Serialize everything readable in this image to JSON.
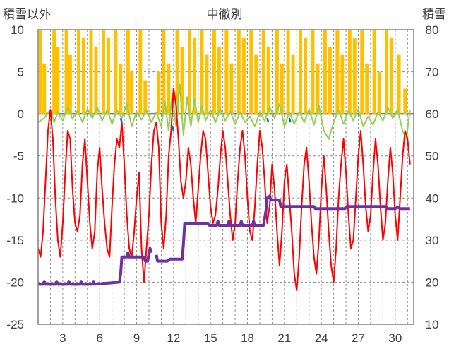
{
  "chart_data": {
    "type": "line",
    "title": "中徹別",
    "ylabel_left": "積雪以外",
    "ylabel_right": "積雪",
    "left_axis": {
      "min": -25,
      "max": 10,
      "ticks": [
        "10",
        "5",
        "0",
        "-5",
        "-10",
        "-15",
        "-20",
        "-25"
      ]
    },
    "right_axis": {
      "min": 10,
      "max": 80,
      "ticks": [
        "80",
        "70",
        "60",
        "50",
        "40",
        "30",
        "20",
        "10"
      ]
    },
    "x_axis": {
      "min": 1,
      "max": 31.5,
      "tick_labels": [
        "3",
        "6",
        "9",
        "12",
        "15",
        "18",
        "21",
        "24",
        "27",
        "30"
      ],
      "tick_values": [
        3,
        6,
        9,
        12,
        15,
        18,
        21,
        24,
        27,
        30
      ]
    },
    "grid": "dashed",
    "colors": {
      "precipitation": "#ffc000",
      "temperature": "#ff0000",
      "wind": "#92d050",
      "snow_depth": "#7030a0",
      "accent": "#0070c0",
      "zero_line": "#808080",
      "frame": "#808080"
    },
    "precip_bars": [
      [
        1.2,
        10
      ],
      [
        1.5,
        6
      ],
      [
        2.3,
        10
      ],
      [
        2.6,
        8
      ],
      [
        3.3,
        10
      ],
      [
        3.6,
        7
      ],
      [
        4.3,
        10
      ],
      [
        4.7,
        9
      ],
      [
        5.3,
        10
      ],
      [
        5.7,
        8
      ],
      [
        6.3,
        10
      ],
      [
        6.7,
        9
      ],
      [
        7.3,
        10
      ],
      [
        7.7,
        6
      ],
      [
        8.3,
        10
      ],
      [
        8.6,
        5
      ],
      [
        9.3,
        10
      ],
      [
        9.7,
        4
      ],
      [
        10.8,
        5
      ],
      [
        11.2,
        10
      ],
      [
        11.6,
        6
      ],
      [
        12.3,
        10
      ],
      [
        12.7,
        8
      ],
      [
        13.3,
        10
      ],
      [
        13.7,
        9
      ],
      [
        14.3,
        10
      ],
      [
        14.7,
        7
      ],
      [
        15.3,
        10
      ],
      [
        15.7,
        8
      ],
      [
        16.3,
        10
      ],
      [
        16.7,
        6
      ],
      [
        17.3,
        10
      ],
      [
        17.7,
        9
      ],
      [
        18.3,
        10
      ],
      [
        18.7,
        7
      ],
      [
        19.3,
        10
      ],
      [
        19.7,
        8
      ],
      [
        20.4,
        10
      ],
      [
        20.8,
        6
      ],
      [
        21.3,
        10
      ],
      [
        21.7,
        7
      ],
      [
        22.3,
        10
      ],
      [
        22.7,
        9
      ],
      [
        23.3,
        10
      ],
      [
        23.7,
        6
      ],
      [
        24.3,
        10
      ],
      [
        24.7,
        8
      ],
      [
        25.3,
        10
      ],
      [
        25.7,
        7
      ],
      [
        26.3,
        10
      ],
      [
        26.7,
        9
      ],
      [
        27.3,
        10
      ],
      [
        27.7,
        6
      ],
      [
        28.3,
        10
      ],
      [
        28.7,
        5
      ],
      [
        29.3,
        10
      ],
      [
        29.7,
        9
      ],
      [
        30.3,
        7
      ],
      [
        30.8,
        3
      ]
    ],
    "temperature": [
      [
        1.0,
        -16
      ],
      [
        1.2,
        -17
      ],
      [
        1.4,
        -14
      ],
      [
        1.6,
        -8
      ],
      [
        1.8,
        -2
      ],
      [
        2.0,
        0.5
      ],
      [
        2.2,
        -3
      ],
      [
        2.4,
        -10
      ],
      [
        2.6,
        -15
      ],
      [
        2.8,
        -17
      ],
      [
        3.0,
        -13
      ],
      [
        3.2,
        -7
      ],
      [
        3.4,
        -2
      ],
      [
        3.6,
        -3
      ],
      [
        3.8,
        -9
      ],
      [
        4.0,
        -13
      ],
      [
        4.2,
        -14
      ],
      [
        4.4,
        -12
      ],
      [
        4.6,
        -6
      ],
      [
        4.8,
        -3
      ],
      [
        5.0,
        -8
      ],
      [
        5.2,
        -13
      ],
      [
        5.4,
        -16
      ],
      [
        5.6,
        -14
      ],
      [
        5.8,
        -7
      ],
      [
        6.0,
        -4
      ],
      [
        6.2,
        -9
      ],
      [
        6.4,
        -13
      ],
      [
        6.6,
        -16
      ],
      [
        6.8,
        -17
      ],
      [
        7.0,
        -11
      ],
      [
        7.2,
        -6
      ],
      [
        7.4,
        -3
      ],
      [
        7.6,
        -4
      ],
      [
        7.8,
        -1
      ],
      [
        8.0,
        -6
      ],
      [
        8.2,
        -12
      ],
      [
        8.4,
        -16
      ],
      [
        8.6,
        -17
      ],
      [
        8.8,
        -14
      ],
      [
        9.0,
        -10
      ],
      [
        9.2,
        -7
      ],
      [
        9.4,
        -16
      ],
      [
        9.6,
        -20
      ],
      [
        9.8,
        -16
      ],
      [
        10.0,
        -12
      ],
      [
        10.2,
        -6
      ],
      [
        10.4,
        -2
      ],
      [
        10.6,
        -1
      ],
      [
        10.8,
        -4
      ],
      [
        11.0,
        -13
      ],
      [
        11.2,
        -16
      ],
      [
        11.4,
        -12
      ],
      [
        11.6,
        -5
      ],
      [
        11.8,
        -2
      ],
      [
        12.0,
        3
      ],
      [
        12.2,
        1
      ],
      [
        12.4,
        -3
      ],
      [
        12.6,
        -8
      ],
      [
        12.8,
        -10
      ],
      [
        13.0,
        -8
      ],
      [
        13.2,
        -4
      ],
      [
        13.4,
        -6
      ],
      [
        13.6,
        -10
      ],
      [
        13.8,
        -13
      ],
      [
        14.0,
        -9
      ],
      [
        14.2,
        -5
      ],
      [
        14.4,
        -2
      ],
      [
        14.6,
        -3
      ],
      [
        14.8,
        -7
      ],
      [
        15.0,
        -11
      ],
      [
        15.2,
        -13
      ],
      [
        15.4,
        -12
      ],
      [
        15.6,
        -9
      ],
      [
        15.8,
        -5
      ],
      [
        16.0,
        -2
      ],
      [
        16.2,
        -4
      ],
      [
        16.4,
        -8
      ],
      [
        16.6,
        -12
      ],
      [
        16.8,
        -15
      ],
      [
        17.0,
        -13
      ],
      [
        17.2,
        -8
      ],
      [
        17.4,
        -4
      ],
      [
        17.6,
        -2
      ],
      [
        17.8,
        -5
      ],
      [
        18.0,
        -10
      ],
      [
        18.2,
        -14
      ],
      [
        18.4,
        -15
      ],
      [
        18.6,
        -11
      ],
      [
        18.8,
        -6
      ],
      [
        19.0,
        -2
      ],
      [
        19.2,
        -4
      ],
      [
        19.4,
        -8
      ],
      [
        19.6,
        -13
      ],
      [
        19.8,
        -11
      ],
      [
        20.0,
        -6
      ],
      [
        20.2,
        -9
      ],
      [
        20.4,
        -14
      ],
      [
        20.6,
        -18
      ],
      [
        20.8,
        -14
      ],
      [
        21.0,
        -8
      ],
      [
        21.2,
        -6
      ],
      [
        21.4,
        -10
      ],
      [
        21.6,
        -14
      ],
      [
        21.8,
        -19
      ],
      [
        22.0,
        -21
      ],
      [
        22.2,
        -17
      ],
      [
        22.4,
        -11
      ],
      [
        22.6,
        -6
      ],
      [
        22.8,
        -4
      ],
      [
        23.0,
        -8
      ],
      [
        23.2,
        -13
      ],
      [
        23.4,
        -17
      ],
      [
        23.6,
        -19
      ],
      [
        23.8,
        -15
      ],
      [
        24.0,
        -9
      ],
      [
        24.2,
        -5
      ],
      [
        24.4,
        -9
      ],
      [
        24.6,
        -14
      ],
      [
        24.8,
        -18
      ],
      [
        25.0,
        -20
      ],
      [
        25.2,
        -16
      ],
      [
        25.4,
        -10
      ],
      [
        25.6,
        -6
      ],
      [
        25.8,
        -3
      ],
      [
        26.0,
        -7
      ],
      [
        26.2,
        -12
      ],
      [
        26.4,
        -16
      ],
      [
        26.6,
        -15
      ],
      [
        26.8,
        -10
      ],
      [
        27.0,
        -5
      ],
      [
        27.2,
        -2
      ],
      [
        27.4,
        -6
      ],
      [
        27.6,
        -11
      ],
      [
        27.8,
        -14
      ],
      [
        28.0,
        -12
      ],
      [
        28.2,
        -7
      ],
      [
        28.4,
        -3
      ],
      [
        28.6,
        -6
      ],
      [
        28.8,
        -11
      ],
      [
        29.0,
        -15
      ],
      [
        29.2,
        -13
      ],
      [
        29.4,
        -8
      ],
      [
        29.6,
        -4
      ],
      [
        29.8,
        -7
      ],
      [
        30.0,
        -12
      ],
      [
        30.2,
        -15
      ],
      [
        30.4,
        -10
      ],
      [
        30.6,
        -5
      ],
      [
        30.8,
        -2
      ],
      [
        31.0,
        -3
      ],
      [
        31.2,
        -6
      ]
    ],
    "wind": [
      [
        1.0,
        -1
      ],
      [
        1.5,
        -0.5
      ],
      [
        2.0,
        0.5
      ],
      [
        2.3,
        -1
      ],
      [
        2.6,
        0.2
      ],
      [
        3.0,
        -0.8
      ],
      [
        3.4,
        0.8
      ],
      [
        3.8,
        -0.6
      ],
      [
        4.2,
        0.4
      ],
      [
        4.6,
        -1
      ],
      [
        5.0,
        0.6
      ],
      [
        5.4,
        -0.5
      ],
      [
        5.8,
        0.8
      ],
      [
        6.2,
        -0.8
      ],
      [
        6.6,
        0.5
      ],
      [
        7.0,
        -1.2
      ],
      [
        7.4,
        0.5
      ],
      [
        7.8,
        -0.5
      ],
      [
        8.2,
        1.2
      ],
      [
        8.6,
        -1.5
      ],
      [
        9.0,
        0.3
      ],
      [
        9.4,
        -0.7
      ],
      [
        9.8,
        0.5
      ],
      [
        10.2,
        -1
      ],
      [
        10.6,
        0.2
      ],
      [
        11.0,
        -1.5
      ],
      [
        11.3,
        1.5
      ],
      [
        11.6,
        -2
      ],
      [
        11.9,
        2.5
      ],
      [
        12.2,
        -1.5
      ],
      [
        12.5,
        3.5
      ],
      [
        12.8,
        -2.5
      ],
      [
        13.1,
        2
      ],
      [
        13.4,
        -1.5
      ],
      [
        13.7,
        1.8
      ],
      [
        14.0,
        -1
      ],
      [
        14.3,
        1
      ],
      [
        14.6,
        -0.8
      ],
      [
        15.0,
        0.5
      ],
      [
        15.4,
        -1
      ],
      [
        15.8,
        0.6
      ],
      [
        16.2,
        -0.8
      ],
      [
        16.6,
        0.3
      ],
      [
        17.0,
        -1.2
      ],
      [
        17.4,
        0.2
      ],
      [
        17.8,
        -1
      ],
      [
        18.2,
        -0.3
      ],
      [
        18.6,
        -1.5
      ],
      [
        19.0,
        0.2
      ],
      [
        19.4,
        -0.8
      ],
      [
        19.8,
        0.8
      ],
      [
        20.2,
        -0.5
      ],
      [
        20.6,
        1.2
      ],
      [
        21.0,
        -1.5
      ],
      [
        21.4,
        0.2
      ],
      [
        21.8,
        -1.2
      ],
      [
        22.2,
        0.3
      ],
      [
        22.6,
        -1
      ],
      [
        23.0,
        0.6
      ],
      [
        23.4,
        -1.3
      ],
      [
        23.8,
        1
      ],
      [
        24.2,
        -2
      ],
      [
        24.6,
        -3
      ],
      [
        25.0,
        -1
      ],
      [
        25.4,
        0.5
      ],
      [
        25.8,
        -1.2
      ],
      [
        26.2,
        0.4
      ],
      [
        26.6,
        -0.8
      ],
      [
        27.0,
        0.6
      ],
      [
        27.4,
        -1.5
      ],
      [
        27.8,
        -0.3
      ],
      [
        28.2,
        -1.3
      ],
      [
        28.6,
        0.2
      ],
      [
        29.0,
        -0.8
      ],
      [
        29.4,
        0.8
      ],
      [
        29.8,
        -0.5
      ],
      [
        30.2,
        0.5
      ],
      [
        30.6,
        -2
      ],
      [
        30.9,
        -3
      ],
      [
        31.2,
        0.5
      ]
    ],
    "snow_depth_segments": [
      [
        [
          1.0,
          19.5
        ],
        [
          1.4,
          19.5
        ],
        [
          1.5,
          20.2
        ],
        [
          1.6,
          19.5
        ],
        [
          2.4,
          19.5
        ],
        [
          2.5,
          20.2
        ],
        [
          2.6,
          19.5
        ],
        [
          3.4,
          19.5
        ],
        [
          3.5,
          20.2
        ],
        [
          3.6,
          19.5
        ],
        [
          4.4,
          19.5
        ],
        [
          4.5,
          20.2
        ],
        [
          4.6,
          19.5
        ],
        [
          5.4,
          19.5
        ],
        [
          5.5,
          20.2
        ],
        [
          5.6,
          19.5
        ],
        [
          7.6,
          20
        ],
        [
          7.7,
          22
        ],
        [
          7.8,
          26
        ],
        [
          8.2,
          26
        ],
        [
          8.3,
          27
        ],
        [
          8.4,
          26
        ],
        [
          9.6,
          26
        ],
        [
          9.7,
          25
        ],
        [
          9.9,
          25
        ],
        [
          10.0,
          27
        ],
        [
          10.1,
          28
        ],
        [
          10.2,
          27
        ]
      ],
      [
        [
          10.6,
          26.5
        ],
        [
          10.7,
          25
        ],
        [
          11.5,
          25
        ],
        [
          11.7,
          25.5
        ],
        [
          12.7,
          25.5
        ],
        [
          12.8,
          29
        ],
        [
          12.9,
          34
        ],
        [
          14.8,
          34
        ],
        [
          14.9,
          33.5
        ],
        [
          15.5,
          33.5
        ],
        [
          15.6,
          34.5
        ],
        [
          15.7,
          33.5
        ],
        [
          16.4,
          33.5
        ],
        [
          16.5,
          34.5
        ],
        [
          16.6,
          33.5
        ],
        [
          17.4,
          33.5
        ],
        [
          17.5,
          34.5
        ],
        [
          17.6,
          33.5
        ],
        [
          18.4,
          33.5
        ],
        [
          18.5,
          34.5
        ],
        [
          18.6,
          33.5
        ],
        [
          19.3,
          33.5
        ],
        [
          19.5,
          37
        ],
        [
          19.6,
          40
        ],
        [
          19.7,
          40
        ],
        [
          19.8,
          40.5
        ],
        [
          19.9,
          39.5
        ],
        [
          20.6,
          39.5
        ],
        [
          20.7,
          38
        ],
        [
          23.4,
          38
        ],
        [
          23.5,
          37.5
        ],
        [
          25.9,
          37.5
        ],
        [
          26.1,
          38
        ],
        [
          29.2,
          38
        ],
        [
          29.4,
          37.5
        ],
        [
          30.0,
          37.5
        ],
        [
          30.2,
          37.8
        ],
        [
          30.4,
          37.5
        ],
        [
          31.2,
          37.5
        ]
      ]
    ],
    "accent_segments": [
      [
        [
          7.7,
          59
        ],
        [
          7.8,
          58
        ]
      ],
      [
        [
          11.9,
          57
        ],
        [
          12.0,
          56
        ]
      ],
      [
        [
          19.6,
          59
        ],
        [
          19.7,
          58
        ]
      ],
      [
        [
          21.4,
          59
        ],
        [
          21.5,
          58
        ]
      ]
    ]
  }
}
